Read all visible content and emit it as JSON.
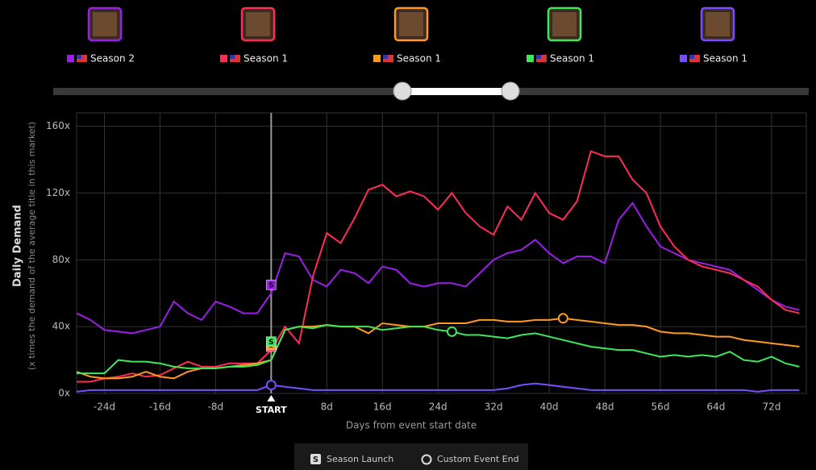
{
  "chart_data": {
    "type": "line",
    "y_label": "Daily Demand",
    "y_sublabel": "(x times the demand of the average title in this market)",
    "x_label": "Days from event start date",
    "launch_symbol": "S",
    "event_legend": {
      "launch": "Season Launch",
      "event_end": "Custom Event End"
    },
    "xlim": [
      -28,
      77
    ],
    "ylim": [
      0,
      168
    ],
    "xticks": [
      {
        "value": -24,
        "label": "-24d"
      },
      {
        "value": -16,
        "label": "-16d"
      },
      {
        "value": -8,
        "label": "-8d"
      },
      {
        "value": 0,
        "label": "START"
      },
      {
        "value": 8,
        "label": "8d"
      },
      {
        "value": 16,
        "label": "16d"
      },
      {
        "value": 24,
        "label": "24d"
      },
      {
        "value": 32,
        "label": "32d"
      },
      {
        "value": 40,
        "label": "40d"
      },
      {
        "value": 48,
        "label": "48d"
      },
      {
        "value": 56,
        "label": "56d"
      },
      {
        "value": 64,
        "label": "64d"
      },
      {
        "value": 72,
        "label": "72d"
      }
    ],
    "yticks": [
      {
        "value": 0,
        "label": "0x"
      },
      {
        "value": 40,
        "label": "40x"
      },
      {
        "value": 80,
        "label": "80x"
      },
      {
        "value": 120,
        "label": "120x"
      },
      {
        "value": 160,
        "label": "160x"
      }
    ],
    "grid": true,
    "x": [
      -28,
      -26,
      -24,
      -22,
      -20,
      -18,
      -16,
      -14,
      -12,
      -10,
      -8,
      -6,
      -4,
      -2,
      0,
      2,
      4,
      6,
      8,
      10,
      12,
      14,
      16,
      18,
      20,
      22,
      24,
      26,
      28,
      30,
      32,
      34,
      36,
      38,
      40,
      42,
      44,
      46,
      48,
      50,
      52,
      54,
      56,
      58,
      60,
      62,
      64,
      66,
      68,
      70,
      72,
      74,
      76
    ],
    "series": [
      {
        "name": "Season 2",
        "color": "#9b1fe8",
        "launch": {
          "x": 0,
          "y": 65
        },
        "values": [
          48,
          44,
          38,
          37,
          36,
          38,
          40,
          55,
          48,
          44,
          55,
          52,
          48,
          48,
          60,
          84,
          82,
          68,
          64,
          74,
          72,
          66,
          76,
          74,
          66,
          64,
          66,
          66,
          64,
          72,
          80,
          84,
          86,
          92,
          84,
          78,
          82,
          82,
          78,
          104,
          114,
          100,
          88,
          84,
          80,
          78,
          76,
          74,
          68,
          62,
          56,
          52,
          50
        ]
      },
      {
        "name": "Season 1",
        "color": "#ff2d55",
        "launch": {
          "x": 0,
          "y": 28
        },
        "values": [
          7,
          7,
          9,
          10,
          12,
          10,
          11,
          15,
          19,
          16,
          16,
          18,
          18,
          18,
          26,
          40,
          30,
          70,
          96,
          90,
          105,
          122,
          125,
          118,
          121,
          118,
          110,
          120,
          108,
          100,
          95,
          112,
          104,
          120,
          108,
          104,
          115,
          145,
          142,
          142,
          128,
          120,
          100,
          88,
          80,
          76,
          74,
          72,
          68,
          64,
          56,
          50,
          48
        ]
      },
      {
        "name": "Season 1",
        "color": "#ff9a1f",
        "launch": {
          "x": 0,
          "y": 29
        },
        "event_end": {
          "x": 42,
          "y": 45
        },
        "values": [
          13,
          10,
          9,
          9,
          10,
          13,
          10,
          9,
          13,
          15,
          15,
          16,
          17,
          18,
          20,
          38,
          40,
          40,
          41,
          40,
          40,
          36,
          42,
          41,
          40,
          40,
          42,
          42,
          42,
          44,
          44,
          43,
          43,
          44,
          44,
          45,
          44,
          43,
          42,
          41,
          41,
          40,
          37,
          36,
          36,
          35,
          34,
          34,
          32,
          31,
          30,
          29,
          28
        ]
      },
      {
        "name": "Season 1",
        "color": "#3ee85a",
        "launch": {
          "x": 0,
          "y": 31
        },
        "event_end": {
          "x": 26,
          "y": 37
        },
        "values": [
          12,
          12,
          12,
          20,
          19,
          19,
          18,
          16,
          15,
          15,
          15,
          16,
          16,
          17,
          20,
          38,
          40,
          39,
          41,
          40,
          40,
          40,
          38,
          39,
          40,
          40,
          38,
          37,
          35,
          35,
          34,
          33,
          35,
          36,
          34,
          32,
          30,
          28,
          27,
          26,
          26,
          24,
          22,
          23,
          22,
          23,
          22,
          25,
          20,
          19,
          22,
          18,
          16
        ]
      },
      {
        "name": "Season 1",
        "color": "#7a4dff",
        "event_end": {
          "x": 0,
          "y": 5
        },
        "values": [
          1,
          2,
          2,
          2,
          2,
          2,
          2,
          2,
          2,
          2,
          2,
          2,
          2,
          2,
          5,
          4,
          3,
          2,
          2,
          2,
          2,
          2,
          2,
          2,
          2,
          2,
          2,
          2,
          2,
          2,
          2,
          3,
          5,
          6,
          5,
          4,
          3,
          2,
          2,
          2,
          2,
          2,
          2,
          2,
          2,
          2,
          2,
          2,
          2,
          1,
          2,
          2,
          2
        ]
      }
    ]
  }
}
